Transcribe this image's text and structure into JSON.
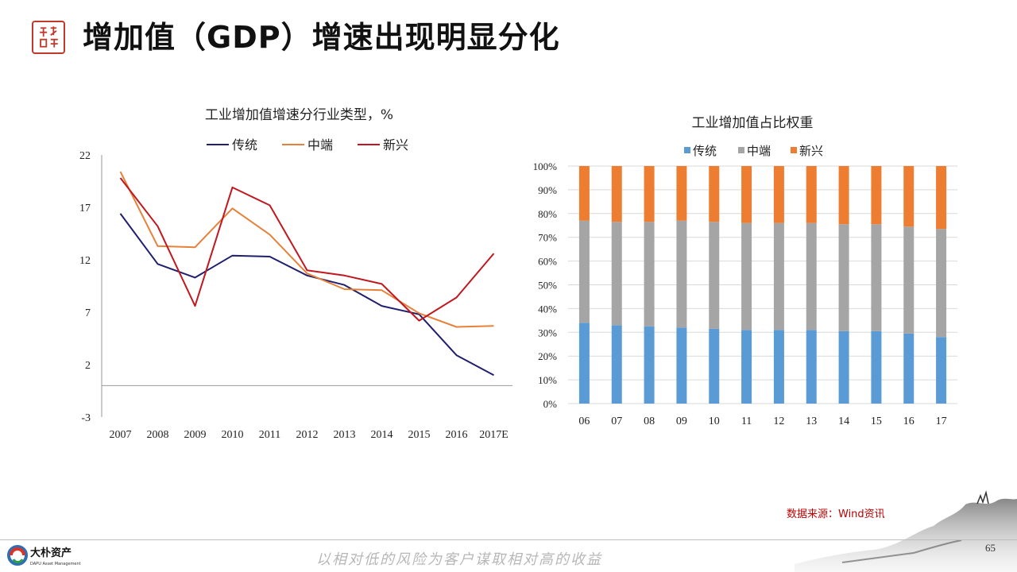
{
  "header": {
    "title": "增加值（GDP）增速出现明显分化"
  },
  "charts": [
    {
      "type": "line",
      "title": "工业增加值增速分行业类型，%",
      "categories": [
        "2007",
        "2008",
        "2009",
        "2010",
        "2011",
        "2012",
        "2013",
        "2014",
        "2015",
        "2016",
        "2017E"
      ],
      "yticks": [
        "22",
        "17",
        "12",
        "7",
        "2",
        "-3"
      ],
      "ylim": [
        -3,
        22
      ],
      "series": [
        {
          "name": "传统",
          "color": "#1f1f6e",
          "values": [
            16.4,
            11.6,
            10.3,
            12.4,
            12.3,
            10.5,
            9.6,
            7.6,
            6.8,
            2.9,
            1.0
          ]
        },
        {
          "name": "中端",
          "color": "#e6813a",
          "values": [
            20.4,
            13.3,
            13.2,
            16.9,
            14.4,
            10.7,
            9.2,
            9.1,
            6.9,
            5.6,
            5.7
          ]
        },
        {
          "name": "新兴",
          "color": "#c0181e",
          "values": [
            19.8,
            15.2,
            7.6,
            18.9,
            17.2,
            11.0,
            10.5,
            9.7,
            6.2,
            8.4,
            12.6
          ]
        }
      ]
    },
    {
      "type": "bar",
      "stacked": true,
      "title": "工业增加值占比权重",
      "categories": [
        "06",
        "07",
        "08",
        "09",
        "10",
        "11",
        "12",
        "13",
        "14",
        "15",
        "16",
        "17"
      ],
      "yticks": [
        "100%",
        "90%",
        "80%",
        "70%",
        "60%",
        "50%",
        "40%",
        "30%",
        "20%",
        "10%",
        "0%"
      ],
      "ylim": [
        0,
        100
      ],
      "series": [
        {
          "name": "传统",
          "color": "#5b9bd5",
          "values": [
            34,
            33,
            32.5,
            32,
            31.5,
            31,
            31,
            31,
            30.5,
            30.5,
            29.5,
            28
          ]
        },
        {
          "name": "中端",
          "color": "#a5a5a5",
          "values": [
            43,
            43.5,
            44,
            45,
            45,
            45,
            45,
            45,
            45,
            45,
            45,
            45.5
          ]
        },
        {
          "name": "新兴",
          "color": "#ed7d31",
          "values": [
            23,
            23.5,
            23.5,
            23,
            23.5,
            24,
            24,
            24,
            24.5,
            24.5,
            25.5,
            26.5
          ]
        }
      ]
    }
  ],
  "source": "数据来源：Wind资讯",
  "footer": {
    "slogan": "以相对低的风险为客户谋取相对高的收益",
    "company_name": "大朴资产",
    "company_en": "DAPU Asset Management",
    "page_number": "65"
  },
  "colors": {
    "accent_red": "#c0392b",
    "source_red": "#c00000"
  }
}
